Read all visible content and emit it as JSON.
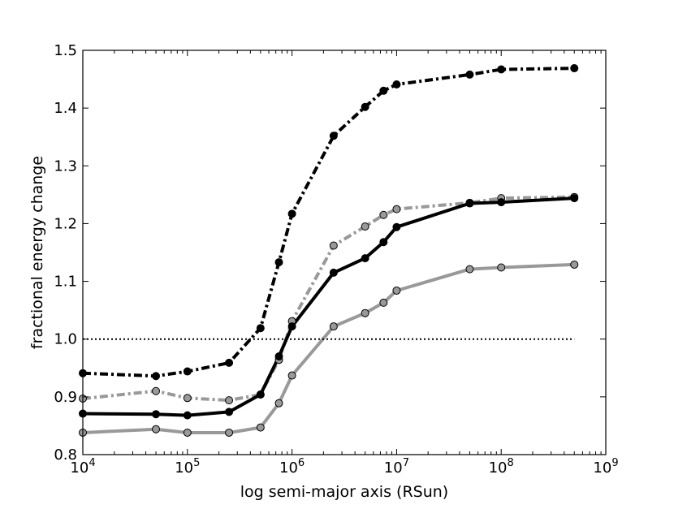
{
  "chart_data": {
    "type": "line",
    "title": "",
    "xlabel": "log semi-major axis (RSun)",
    "ylabel": "fractional energy change",
    "xscale": "log",
    "xlim": [
      10000,
      1000000000
    ],
    "ylim": [
      0.8,
      1.5
    ],
    "xticks": [
      {
        "value": 10000,
        "base": "10",
        "exp": "4"
      },
      {
        "value": 100000,
        "base": "10",
        "exp": "5"
      },
      {
        "value": 1000000,
        "base": "10",
        "exp": "6"
      },
      {
        "value": 10000000,
        "base": "10",
        "exp": "7"
      },
      {
        "value": 100000000,
        "base": "10",
        "exp": "8"
      },
      {
        "value": 1000000000,
        "base": "10",
        "exp": "9"
      }
    ],
    "yticks": [
      "0.8",
      "0.9",
      "1.0",
      "1.1",
      "1.2",
      "1.3",
      "1.4",
      "1.5"
    ],
    "grid": false,
    "series": [
      {
        "name": "gray-solid",
        "color": "#999999",
        "line_style": "solid",
        "marker": "circle",
        "marker_fill": "#999999",
        "x": [
          10000,
          50000,
          100000,
          250000,
          500000,
          750000,
          1000000,
          2500000,
          5000000,
          7500000,
          10000000,
          50000000,
          100000000,
          500000000
        ],
        "y": [
          0.838,
          0.844,
          0.838,
          0.838,
          0.847,
          0.889,
          0.937,
          1.022,
          1.045,
          1.063,
          1.084,
          1.121,
          1.124,
          1.129
        ]
      },
      {
        "name": "gray-dashdot",
        "color": "#999999",
        "line_style": "dashdot",
        "marker": "circle",
        "marker_fill": "#999999",
        "x": [
          10000,
          50000,
          100000,
          250000,
          500000,
          750000,
          1000000,
          2500000,
          5000000,
          7500000,
          10000000,
          50000000,
          100000000,
          500000000
        ],
        "y": [
          0.897,
          0.91,
          0.898,
          0.894,
          0.904,
          0.964,
          1.031,
          1.162,
          1.195,
          1.215,
          1.225,
          1.236,
          1.244,
          1.246
        ]
      },
      {
        "name": "black-solid",
        "color": "#000000",
        "line_style": "solid",
        "marker": "circle",
        "marker_fill": "#000000",
        "x": [
          10000,
          50000,
          100000,
          250000,
          500000,
          750000,
          1000000,
          2500000,
          5000000,
          7500000,
          10000000,
          50000000,
          100000000,
          500000000
        ],
        "y": [
          0.871,
          0.87,
          0.868,
          0.874,
          0.904,
          0.97,
          1.022,
          1.115,
          1.14,
          1.168,
          1.194,
          1.235,
          1.237,
          1.244
        ]
      },
      {
        "name": "black-dashdot",
        "color": "#000000",
        "line_style": "dashdot",
        "marker": "circle",
        "marker_fill": "#000000",
        "x": [
          10000,
          50000,
          100000,
          250000,
          500000,
          750000,
          1000000,
          2500000,
          5000000,
          7500000,
          10000000,
          50000000,
          100000000,
          500000000
        ],
        "y": [
          0.941,
          0.936,
          0.944,
          0.959,
          1.019,
          1.133,
          1.217,
          1.352,
          1.402,
          1.43,
          1.441,
          1.458,
          1.467,
          1.469
        ]
      },
      {
        "name": "reference-1.0",
        "color": "#000000",
        "line_style": "dotted",
        "marker": "none",
        "x": [
          10000,
          500000000
        ],
        "y": [
          1.0,
          1.0
        ]
      }
    ]
  }
}
